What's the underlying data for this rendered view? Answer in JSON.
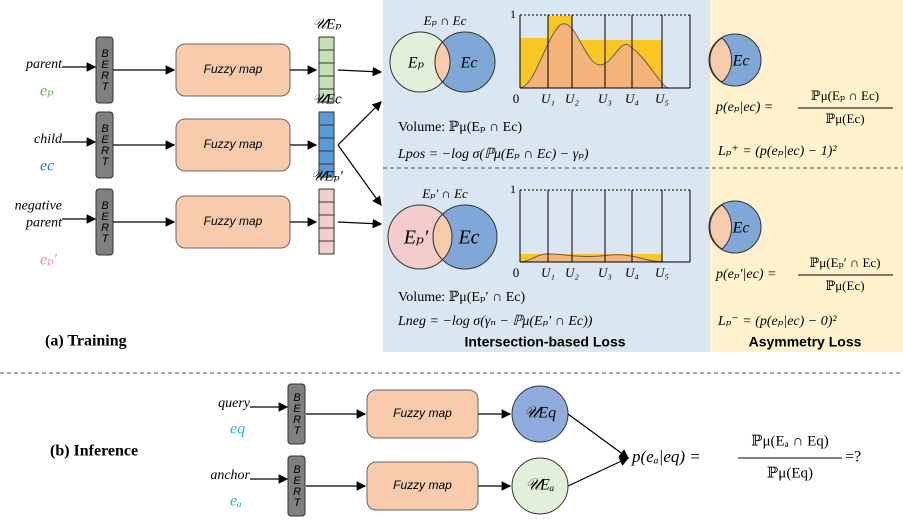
{
  "training": {
    "label": "(a) Training",
    "inputs": [
      {
        "lines": [
          "parent"
        ],
        "symbol": "eₚ"
      },
      {
        "lines": [
          "child"
        ],
        "symbol": "ec"
      },
      {
        "lines": [
          "negative",
          "parent"
        ],
        "symbol": "eₚ′"
      }
    ],
    "encoder": "BERT",
    "mapper": "Fuzzy map",
    "vectors": [
      "𝒰Eₚ",
      "𝒰Ec",
      "𝒰Eₚ′"
    ],
    "intersection": {
      "title": "Intersection-based Loss",
      "axis": {
        "top": "1",
        "labels": [
          "0",
          "U₁",
          "U₂",
          "U₃",
          "U₄",
          "U₅"
        ]
      },
      "positive": {
        "venn_title": "Eₚ ∩ Ec",
        "left": "Eₚ",
        "right": "Ec",
        "volume": "Volume: ℙμ(Eₚ ∩ Ec)",
        "loss": "Lpos = −log σ(ℙμ(Eₚ ∩ Ec) − γₚ)"
      },
      "negative": {
        "venn_title": "Eₚ′ ∩ Ec",
        "left": "Eₚ′",
        "right": "Ec",
        "volume": "Volume: ℙμ(Eₚ′ ∩ Ec)",
        "loss": "Lneg = −log σ(γₙ − ℙμ(Eₚ′ ∩ Ec))"
      }
    },
    "asymmetry": {
      "title": "Asymmetry Loss",
      "circle": "Ec",
      "positive": {
        "lhs": "p(eₚ|ec) =",
        "num": "ℙμ(Eₚ ∩ Ec)",
        "den": "ℙμ(Ec)",
        "loss": "Lₚ⁺ = (p(eₚ|ec) − 1)²"
      },
      "negative": {
        "lhs": "p(eₚ′|ec) =",
        "num": "ℙμ(Eₚ′ ∩ Ec)",
        "den": "ℙμ(Ec)",
        "loss": "Lₚ⁻ = (p(eₚ|ec) − 0)²"
      }
    }
  },
  "inference": {
    "label": "(b) Inference",
    "inputs": [
      {
        "word": "query",
        "symbol": "eq"
      },
      {
        "word": "anchor",
        "symbol": "eₐ"
      }
    ],
    "encoder": "BERT",
    "mapper": "Fuzzy map",
    "boxes": [
      "𝒰Eq",
      "𝒰Eₐ"
    ],
    "formula": {
      "lhs": "p(eₐ|eq) =",
      "num": "ℙμ(Eₐ ∩ Eq)",
      "den": "ℙμ(Eq)",
      "rhs": "=?"
    }
  }
}
